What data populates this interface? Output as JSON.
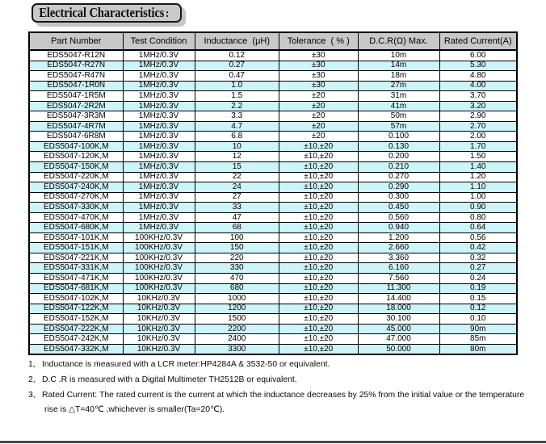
{
  "title": {
    "label": "Electrical Characteristics",
    "colon": ":"
  },
  "table": {
    "headers": [
      "Part Number",
      "Test Condition",
      "Inductance  (μH)",
      "Tolerance  ( % )",
      "D.C.R(Ω) Max.",
      "Rated Current(A)"
    ],
    "rows": [
      [
        "EDS5047-R12N",
        "1MHz/0.3V",
        "0.12",
        "±30",
        "10m",
        "6.00"
      ],
      [
        "EDS5047-R27N",
        "1MHz/0.3V",
        "0.27",
        "±30",
        "14m",
        "5.30"
      ],
      [
        "EDS5047-R47N",
        "1MHz/0.3V",
        "0.47",
        "±30",
        "18m",
        "4.80"
      ],
      [
        "EDS5047-1R0N",
        "1MHz/0.3V",
        "1.0",
        "±30",
        "27m",
        "4.00"
      ],
      [
        "EDS5047-1R5M",
        "1MHz/0.3V",
        "1.5",
        "±20",
        "31m",
        "3.70"
      ],
      [
        "EDS5047-2R2M",
        "1MHz/0.3V",
        "2.2",
        "±20",
        "41m",
        "3.20"
      ],
      [
        "EDS5047-3R3M",
        "1MHz/0.3V",
        "3.3",
        "±20",
        "50m",
        "2.90"
      ],
      [
        "EDS5047-4R7M",
        "1MHz/0.3V",
        "4.7",
        "±20",
        "57m",
        "2.70"
      ],
      [
        "EDS5047-6R8M",
        "1MHz/0.3V",
        "6.8",
        "±20",
        "0.100",
        "2.00"
      ],
      [
        "EDS5047-100K,M",
        "1MHz/0.3V",
        "10",
        "±10,±20",
        "0.130",
        "1.70"
      ],
      [
        "EDS5047-120K,M",
        "1MHz/0.3V",
        "12",
        "±10,±20",
        "0.200",
        "1.50"
      ],
      [
        "EDS5047-150K,M",
        "1MHz/0.3V",
        "15",
        "±10,±20",
        "0.210",
        "1.40"
      ],
      [
        "EDS5047-220K,M",
        "1MHz/0.3V",
        "22",
        "±10,±20",
        "0.270",
        "1.20"
      ],
      [
        "EDS5047-240K,M",
        "1MHz/0.3V",
        "24",
        "±10,±20",
        "0.290",
        "1.10"
      ],
      [
        "EDS5047-270K,M",
        "1MHz/0.3V",
        "27",
        "±10,±20",
        "0.300",
        "1.00"
      ],
      [
        "EDS5047-330K,M",
        "1MHz/0.3V",
        "33",
        "±10,±20",
        "0.450",
        "0.90"
      ],
      [
        "EDS5047-470K,M",
        "1MHz/0.3V",
        "47",
        "±10,±20",
        "0.560",
        "0.80"
      ],
      [
        "EDS5047-680K,M",
        "1MHz/0.3V",
        "68",
        "±10,±20",
        "0.940",
        "0.64"
      ],
      [
        "EDS5047-101K,M",
        "100KHz/0.3V",
        "100",
        "±10,±20",
        "1.200",
        "0.56"
      ],
      [
        "EDS5047-151K,M",
        "100KHz/0.3V",
        "150",
        "±10,±20",
        "2.660",
        "0.42"
      ],
      [
        "EDS5047-221K,M",
        "100KHz/0.3V",
        "220",
        "±10,±20",
        "3.360",
        "0.32"
      ],
      [
        "EDS5047-331K,M",
        "100KHz/0.3V",
        "330",
        "±10,±20",
        "6.160",
        "0.27"
      ],
      [
        "EDS5047-471K,M",
        "100KHz/0.3V",
        "470",
        "±10,±20",
        "7.560",
        "0.24"
      ],
      [
        "EDS5047-681K,M",
        "100KHz/0.3V",
        "680",
        "±10,±20",
        "11.300",
        "0.19"
      ],
      [
        "EDS5047-102K,M",
        "10KHz/0.3V",
        "1000",
        "±10,±20",
        "14.400",
        "0.15"
      ],
      [
        "EDS5047-122K,M",
        "10KHz/0.3V",
        "1200",
        "±10,±20",
        "18.000",
        "0.12"
      ],
      [
        "EDS5047-152K,M",
        "10KHz/0.3V",
        "1500",
        "±10,±20",
        "30.100",
        "0.10"
      ],
      [
        "EDS5047-222K,M",
        "10KHz/0.3V",
        "2200",
        "±10,±20",
        "45.000",
        "90m"
      ],
      [
        "EDS5047-242K,M",
        "10KHz/0.3V",
        "2400",
        "±10,±20",
        "47.000",
        "85m"
      ],
      [
        "EDS5047-332K,M",
        "10KHz/0.3V",
        "3300",
        "±10,±20",
        "50.000",
        "80m"
      ]
    ]
  },
  "notes": [
    {
      "num": "1,",
      "text": "Inductance is measured with a LCR meter:HP4284A & 3532-50 or equivalent."
    },
    {
      "num": "2,",
      "text": "D.C .R is measured with a Digital Multimeter TH2512B or equivalent."
    },
    {
      "num": "3,",
      "line1": "Rated Current: The rated current is the current at which the inductance decreases by 25% from the initial value or the temperature",
      "line2": "rise is △T=40℃ ,whichever is smaller(Ta=20℃)."
    }
  ],
  "colors": {
    "row_alt": "#cdf4f9",
    "header_bg": "#c8c8c8",
    "title_bg": "#c9c9c9",
    "title_shadow": "#c6c6c6",
    "footer_rule": "#4a4a4a"
  }
}
